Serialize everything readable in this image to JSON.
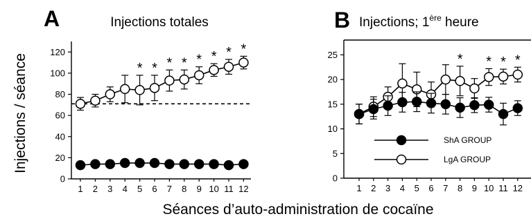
{
  "figure": {
    "ylabel": "Injections / séance",
    "xlabel": "Séances d’auto-administration de cocaïne",
    "colors": {
      "ink": "#000000",
      "open_marker_fill": "#ffffff"
    }
  },
  "chart_data": [
    {
      "panel": "A",
      "type": "line",
      "title": "Injections totales",
      "x": [
        1,
        2,
        3,
        4,
        5,
        6,
        7,
        8,
        9,
        10,
        11,
        12
      ],
      "x_ticks": [
        "1",
        "2",
        "3",
        "4",
        "5",
        "6",
        "7",
        "8",
        "9",
        "10",
        "11",
        "12"
      ],
      "y_ticks": [
        "0",
        "20",
        "40",
        "60",
        "80",
        "100",
        "120"
      ],
      "ylim": [
        0,
        130
      ],
      "series": [
        {
          "marker": "open-circle",
          "values": [
            71,
            74,
            80,
            85,
            84,
            86,
            93,
            94,
            98,
            103,
            106,
            110
          ],
          "errors": [
            6,
            6,
            7,
            13,
            14,
            12,
            10,
            9,
            8,
            6,
            7,
            6
          ]
        },
        {
          "marker": "filled-circle",
          "values": [
            13,
            14,
            14,
            15,
            15,
            15,
            14,
            14,
            14,
            14,
            13,
            14
          ],
          "errors": [
            1,
            1,
            1,
            1,
            1,
            1,
            1,
            1,
            1,
            1,
            1,
            1
          ]
        }
      ],
      "reference_line": {
        "y": 71,
        "style": "dashed"
      },
      "significance": {
        "label": "*",
        "sessions": [
          5,
          6,
          7,
          8,
          9,
          10,
          11,
          12
        ]
      },
      "grid": false
    },
    {
      "panel": "B",
      "type": "line",
      "title_main": "Injections; 1",
      "title_superscript": "ère",
      "title_end": " heure",
      "x": [
        1,
        2,
        3,
        4,
        5,
        6,
        7,
        8,
        9,
        10,
        11,
        12
      ],
      "x_ticks": [
        "1",
        "2",
        "3",
        "4",
        "5",
        "6",
        "7",
        "8",
        "9",
        "10",
        "11",
        "12"
      ],
      "y_ticks": [
        "0",
        "5",
        "10",
        "15",
        "20",
        "25"
      ],
      "ylim": [
        0,
        28
      ],
      "series": [
        {
          "name": "LgA GROUP",
          "marker": "open-circle",
          "values": [
            13,
            14.5,
            16.5,
            19.2,
            18,
            17,
            20,
            19.7,
            18.2,
            20.5,
            20.6,
            21
          ],
          "errors": [
            2,
            2,
            2,
            4,
            3.5,
            2.5,
            3,
            3,
            2,
            1.7,
            1.5,
            1.5
          ]
        },
        {
          "name": "ShA GROUP",
          "marker": "filled-circle",
          "values": [
            13,
            14,
            14.7,
            15.4,
            15.5,
            15.2,
            15,
            14.3,
            14.8,
            14.9,
            13,
            14.2
          ],
          "errors": [
            2,
            2,
            2,
            2,
            2,
            2,
            2,
            2,
            1.5,
            1.5,
            2.2,
            1.5
          ]
        }
      ],
      "legend": {
        "placement": "bottom-right",
        "entries": [
          "ShA GROUP",
          "LgA GROUP"
        ]
      },
      "significance": {
        "label": "*",
        "sessions": [
          8,
          10,
          11,
          12
        ]
      },
      "grid": false
    }
  ]
}
